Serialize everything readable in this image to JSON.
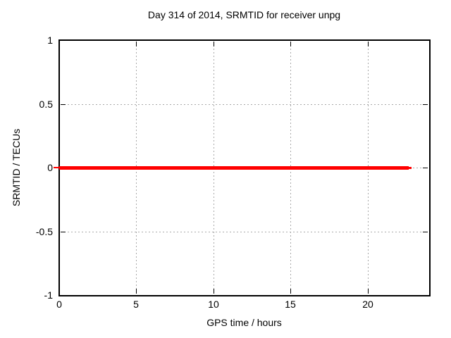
{
  "chart_data": {
    "type": "line",
    "title": "Day 314 of 2014, SRMTID for receiver unpg",
    "xlabel": "GPS time / hours",
    "ylabel": "SRMTID / TECUs",
    "xlim": [
      0,
      24
    ],
    "ylim": [
      -1,
      1
    ],
    "xticks": [
      0,
      5,
      10,
      15,
      20
    ],
    "yticks": [
      -1,
      -0.5,
      0,
      0.5,
      1
    ],
    "grid": true,
    "legend": "none",
    "series": [
      {
        "name": "SRMTID",
        "color": "#ff0000",
        "x_start": 0,
        "x_end": 22.85,
        "value": 0,
        "thickness_px": 5
      }
    ],
    "colors": {
      "series": "#ff0000",
      "grid": "#a8a8a8",
      "border": "#000000",
      "text": "#000000",
      "background": "#ffffff"
    }
  }
}
